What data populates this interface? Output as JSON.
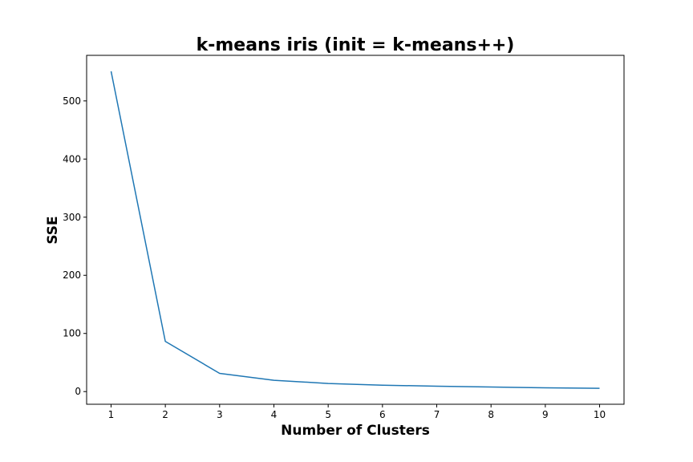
{
  "chart_data": {
    "type": "line",
    "title": "k-means iris (init = k-means++)",
    "xlabel": "Number of Clusters",
    "ylabel": "SSE",
    "x": [
      1,
      2,
      3,
      4,
      5,
      6,
      7,
      8,
      9,
      10
    ],
    "series": [
      {
        "values": [
          550.9,
          86.4,
          31.3,
          19.5,
          13.9,
          11.0,
          9.3,
          7.8,
          6.5,
          5.6
        ],
        "color": "#1f77b4"
      }
    ],
    "xlim": [
      0.55,
      10.45
    ],
    "ylim": [
      -21.8,
      578.4
    ],
    "xticks": [
      "1",
      "2",
      "3",
      "4",
      "5",
      "6",
      "7",
      "8",
      "9",
      "10"
    ],
    "yticks": [
      "0",
      "100",
      "200",
      "300",
      "400",
      "500"
    ],
    "grid": false,
    "legend": "none"
  }
}
